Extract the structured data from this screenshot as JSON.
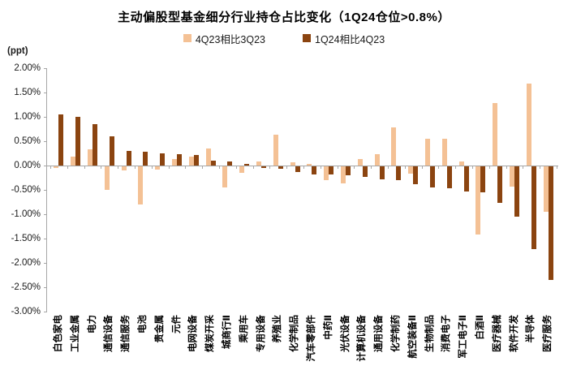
{
  "title": "主动偏股型基金细分行业持仓占比变化（1Q24仓位>0.8%）",
  "axis_unit_label": "(ppt)",
  "legend": {
    "items": [
      {
        "label": "4Q23相比3Q23",
        "color": "#F4C195"
      },
      {
        "label": "1Q24相比4Q23",
        "color": "#8B4410"
      }
    ]
  },
  "colors": {
    "series_light": "#F4C195",
    "series_dark": "#8B4410",
    "axis_line": "#A6A6A6",
    "text": "#000000"
  },
  "chart_data": {
    "type": "bar",
    "title": "主动偏股型基金细分行业持仓占比变化（1Q24仓位>0.8%）",
    "xlabel": "",
    "ylabel": "(ppt)",
    "ylim": [
      -3.0,
      2.0
    ],
    "ytick_step": 0.5,
    "ytick_labels": [
      "2.00%",
      "1.50%",
      "1.00%",
      "0.50%",
      "0.00%",
      "-0.50%",
      "-1.00%",
      "-1.50%",
      "-2.00%",
      "-2.50%",
      "-3.00%"
    ],
    "grid": false,
    "legend_position": "top",
    "categories": [
      "白色家电",
      "工业金属",
      "电力",
      "通信设备",
      "通信服务",
      "电池",
      "贵金属",
      "元件",
      "电网设备",
      "煤炭开采",
      "城商行Ⅱ",
      "乘用车",
      "专用设备",
      "养殖业",
      "化学制品",
      "汽车零部件",
      "中药Ⅱ",
      "光伏设备",
      "计算机设备",
      "通用设备",
      "化学制药",
      "航空装备Ⅱ",
      "生物制品",
      "消费电子",
      "军工电子Ⅱ",
      "白酒Ⅱ",
      "医疗器械",
      "软件开发",
      "半导体",
      "医疗服务"
    ],
    "series": [
      {
        "name": "4Q23相比3Q23",
        "color": "#F4C195",
        "values": [
          -0.04,
          0.19,
          0.33,
          -0.48,
          -0.08,
          -0.78,
          -0.06,
          0.14,
          0.18,
          0.35,
          -0.44,
          -0.14,
          0.09,
          0.63,
          0.07,
          0.03,
          -0.28,
          -0.35,
          0.13,
          0.24,
          0.78,
          -0.15,
          0.55,
          0.55,
          0.09,
          -1.4,
          1.29,
          -0.41,
          1.68,
          -0.93
        ]
      },
      {
        "name": "1Q24相比4Q23",
        "color": "#8B4410",
        "values": [
          1.05,
          1.0,
          0.85,
          0.6,
          0.3,
          0.29,
          0.25,
          0.23,
          0.22,
          0.1,
          0.09,
          0.04,
          -0.04,
          -0.05,
          -0.12,
          -0.16,
          -0.17,
          -0.18,
          -0.22,
          -0.26,
          -0.28,
          -0.37,
          -0.43,
          -0.45,
          -0.52,
          -0.53,
          -0.75,
          -1.04,
          -1.7,
          -2.33
        ]
      }
    ]
  }
}
